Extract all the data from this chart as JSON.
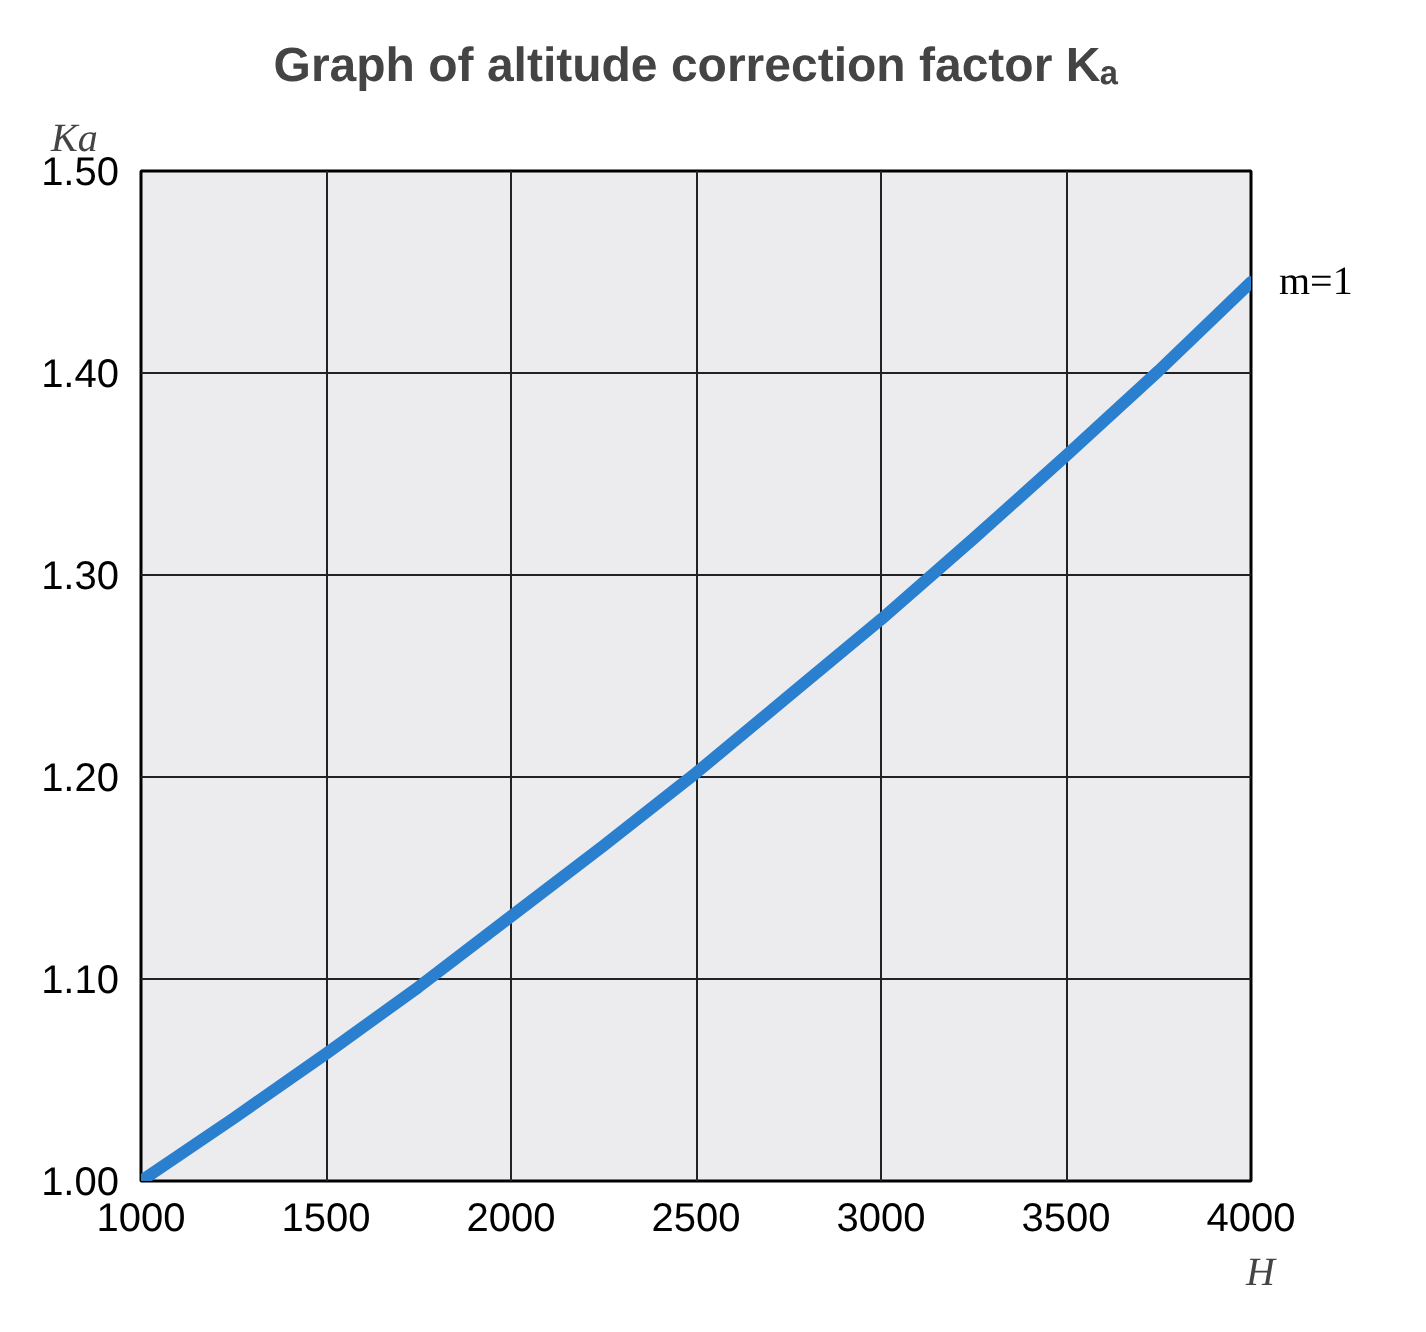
{
  "chart_data": {
    "type": "line",
    "title": "Graph of altitude correction factor Kₐ",
    "xlabel": "H",
    "ylabel": "Ka",
    "x": [
      1000,
      1250,
      1500,
      1750,
      2000,
      2250,
      2500,
      2750,
      3000,
      3250,
      3500,
      3750,
      4000
    ],
    "series": [
      {
        "name": "m=1",
        "color": "#2a7fcf",
        "values": [
          1.0,
          1.031,
          1.063,
          1.096,
          1.131,
          1.166,
          1.202,
          1.24,
          1.278,
          1.318,
          1.359,
          1.401,
          1.445
        ]
      }
    ],
    "xlim": [
      1000,
      4000
    ],
    "xticks": [
      1000,
      1500,
      2000,
      2500,
      3000,
      3500,
      4000
    ],
    "ylim": [
      1.0,
      1.5
    ],
    "yticks": [
      {
        "value": 1.0,
        "label": "1.00"
      },
      {
        "value": 1.1,
        "label": "1.10"
      },
      {
        "value": 1.2,
        "label": "1.20"
      },
      {
        "value": 1.3,
        "label": "1.30"
      },
      {
        "value": 1.4,
        "label": "1.40"
      },
      {
        "value": 1.5,
        "label": "1.50"
      }
    ],
    "grid": true,
    "marker": "none",
    "line_style": "solid"
  }
}
